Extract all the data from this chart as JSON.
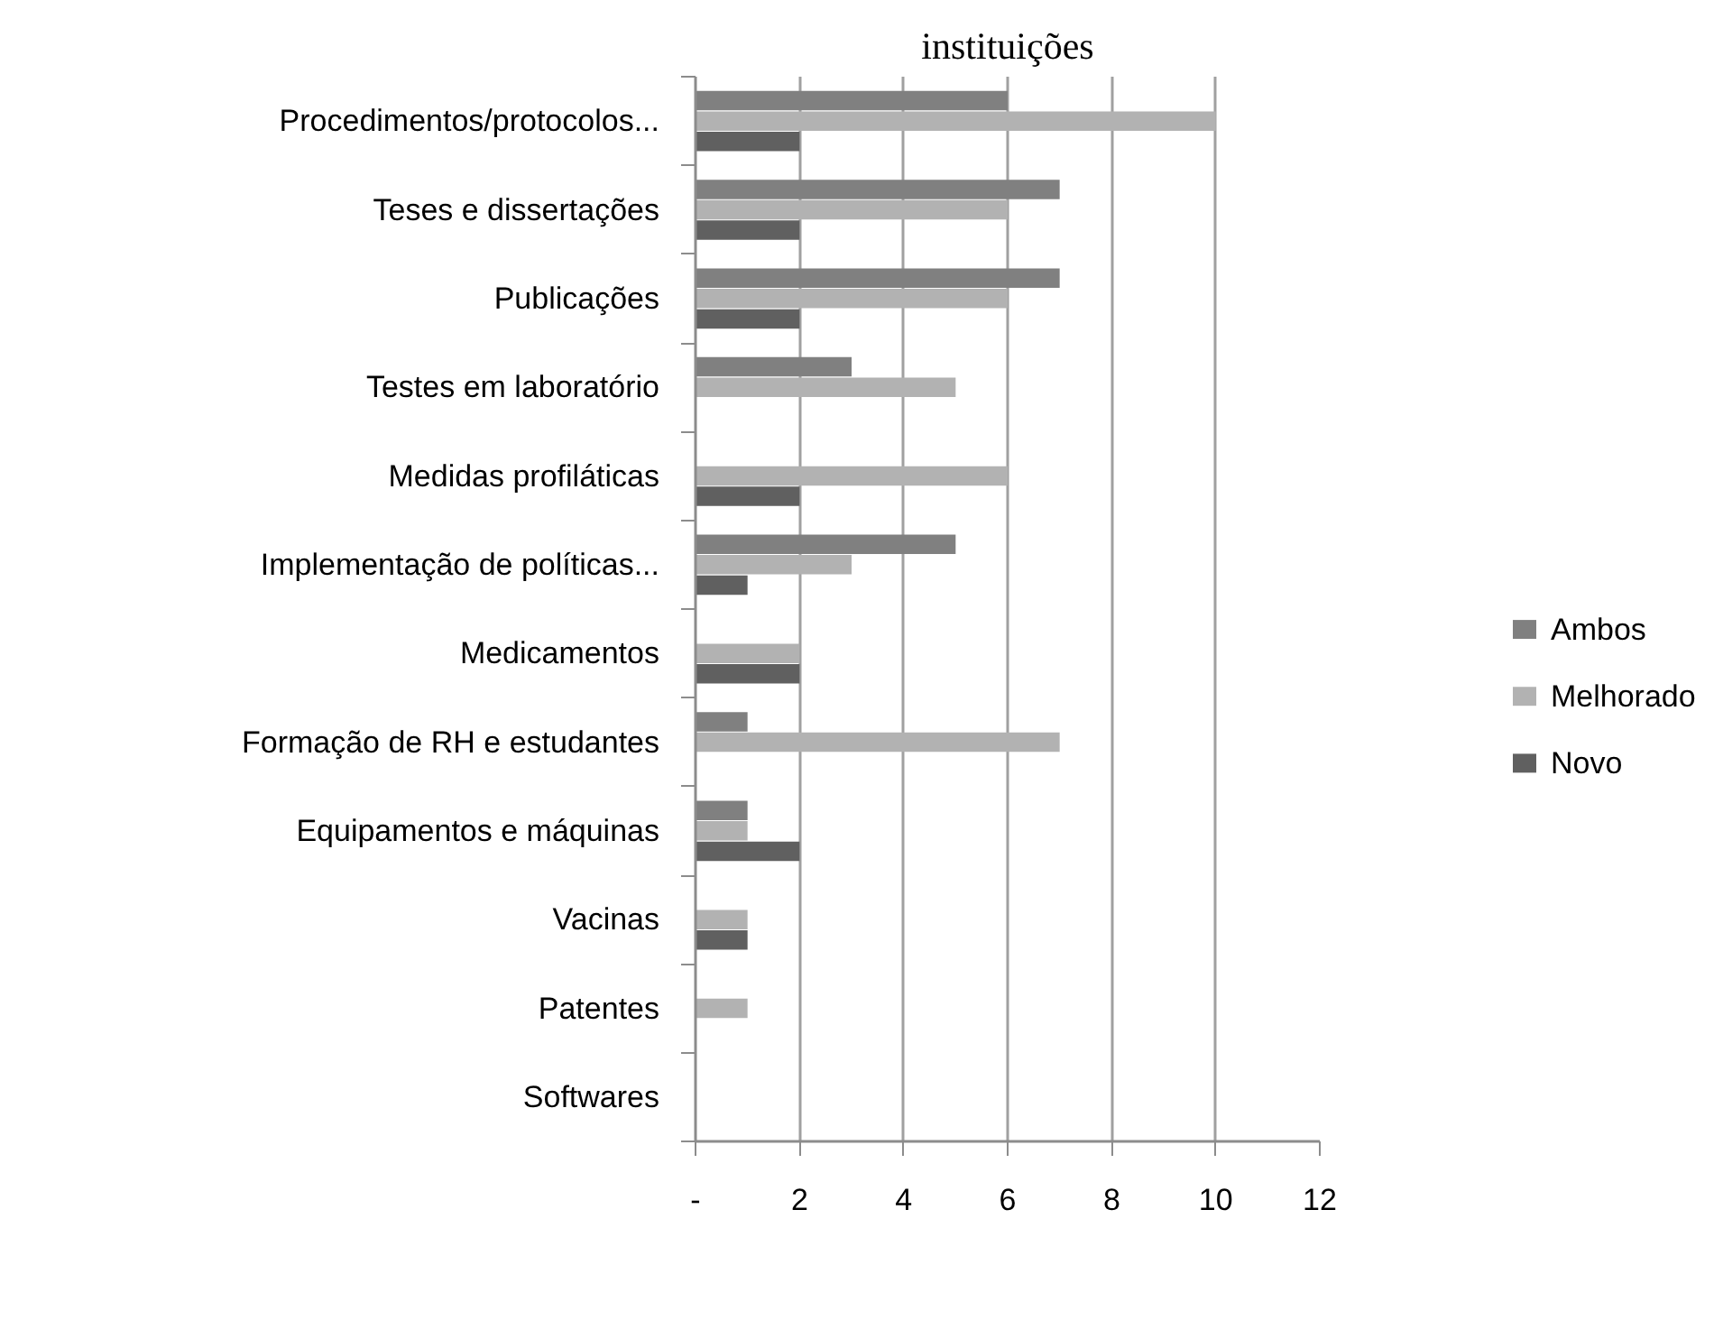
{
  "chart_data": {
    "type": "bar",
    "orientation": "horizontal",
    "title": "instituições",
    "categories": [
      "Procedimentos/protocolos...",
      "Teses e dissertações",
      "Publicações",
      "Testes em laboratório",
      "Medidas profiláticas",
      "Implementação de políticas...",
      "Medicamentos",
      "Formação de RH e estudantes",
      "Equipamentos e máquinas",
      "Vacinas",
      "Patentes",
      "Softwares"
    ],
    "series": [
      {
        "name": "Ambos",
        "color": "#808080",
        "values": [
          6,
          7,
          7,
          3,
          0,
          5,
          0,
          1,
          1,
          0,
          0,
          0
        ]
      },
      {
        "name": "Melhorado",
        "color": "#b2b2b2",
        "values": [
          10,
          6,
          6,
          5,
          6,
          3,
          2,
          7,
          1,
          1,
          1,
          0
        ]
      },
      {
        "name": "Novo",
        "color": "#606060",
        "values": [
          2,
          2,
          2,
          0,
          2,
          1,
          2,
          0,
          2,
          1,
          0,
          0
        ]
      }
    ],
    "xlim": [
      0,
      12
    ],
    "xticks": [
      {
        "value": 0,
        "label": "-"
      },
      2,
      4,
      6,
      8,
      10,
      12
    ],
    "grid": "x",
    "legend": "right"
  }
}
